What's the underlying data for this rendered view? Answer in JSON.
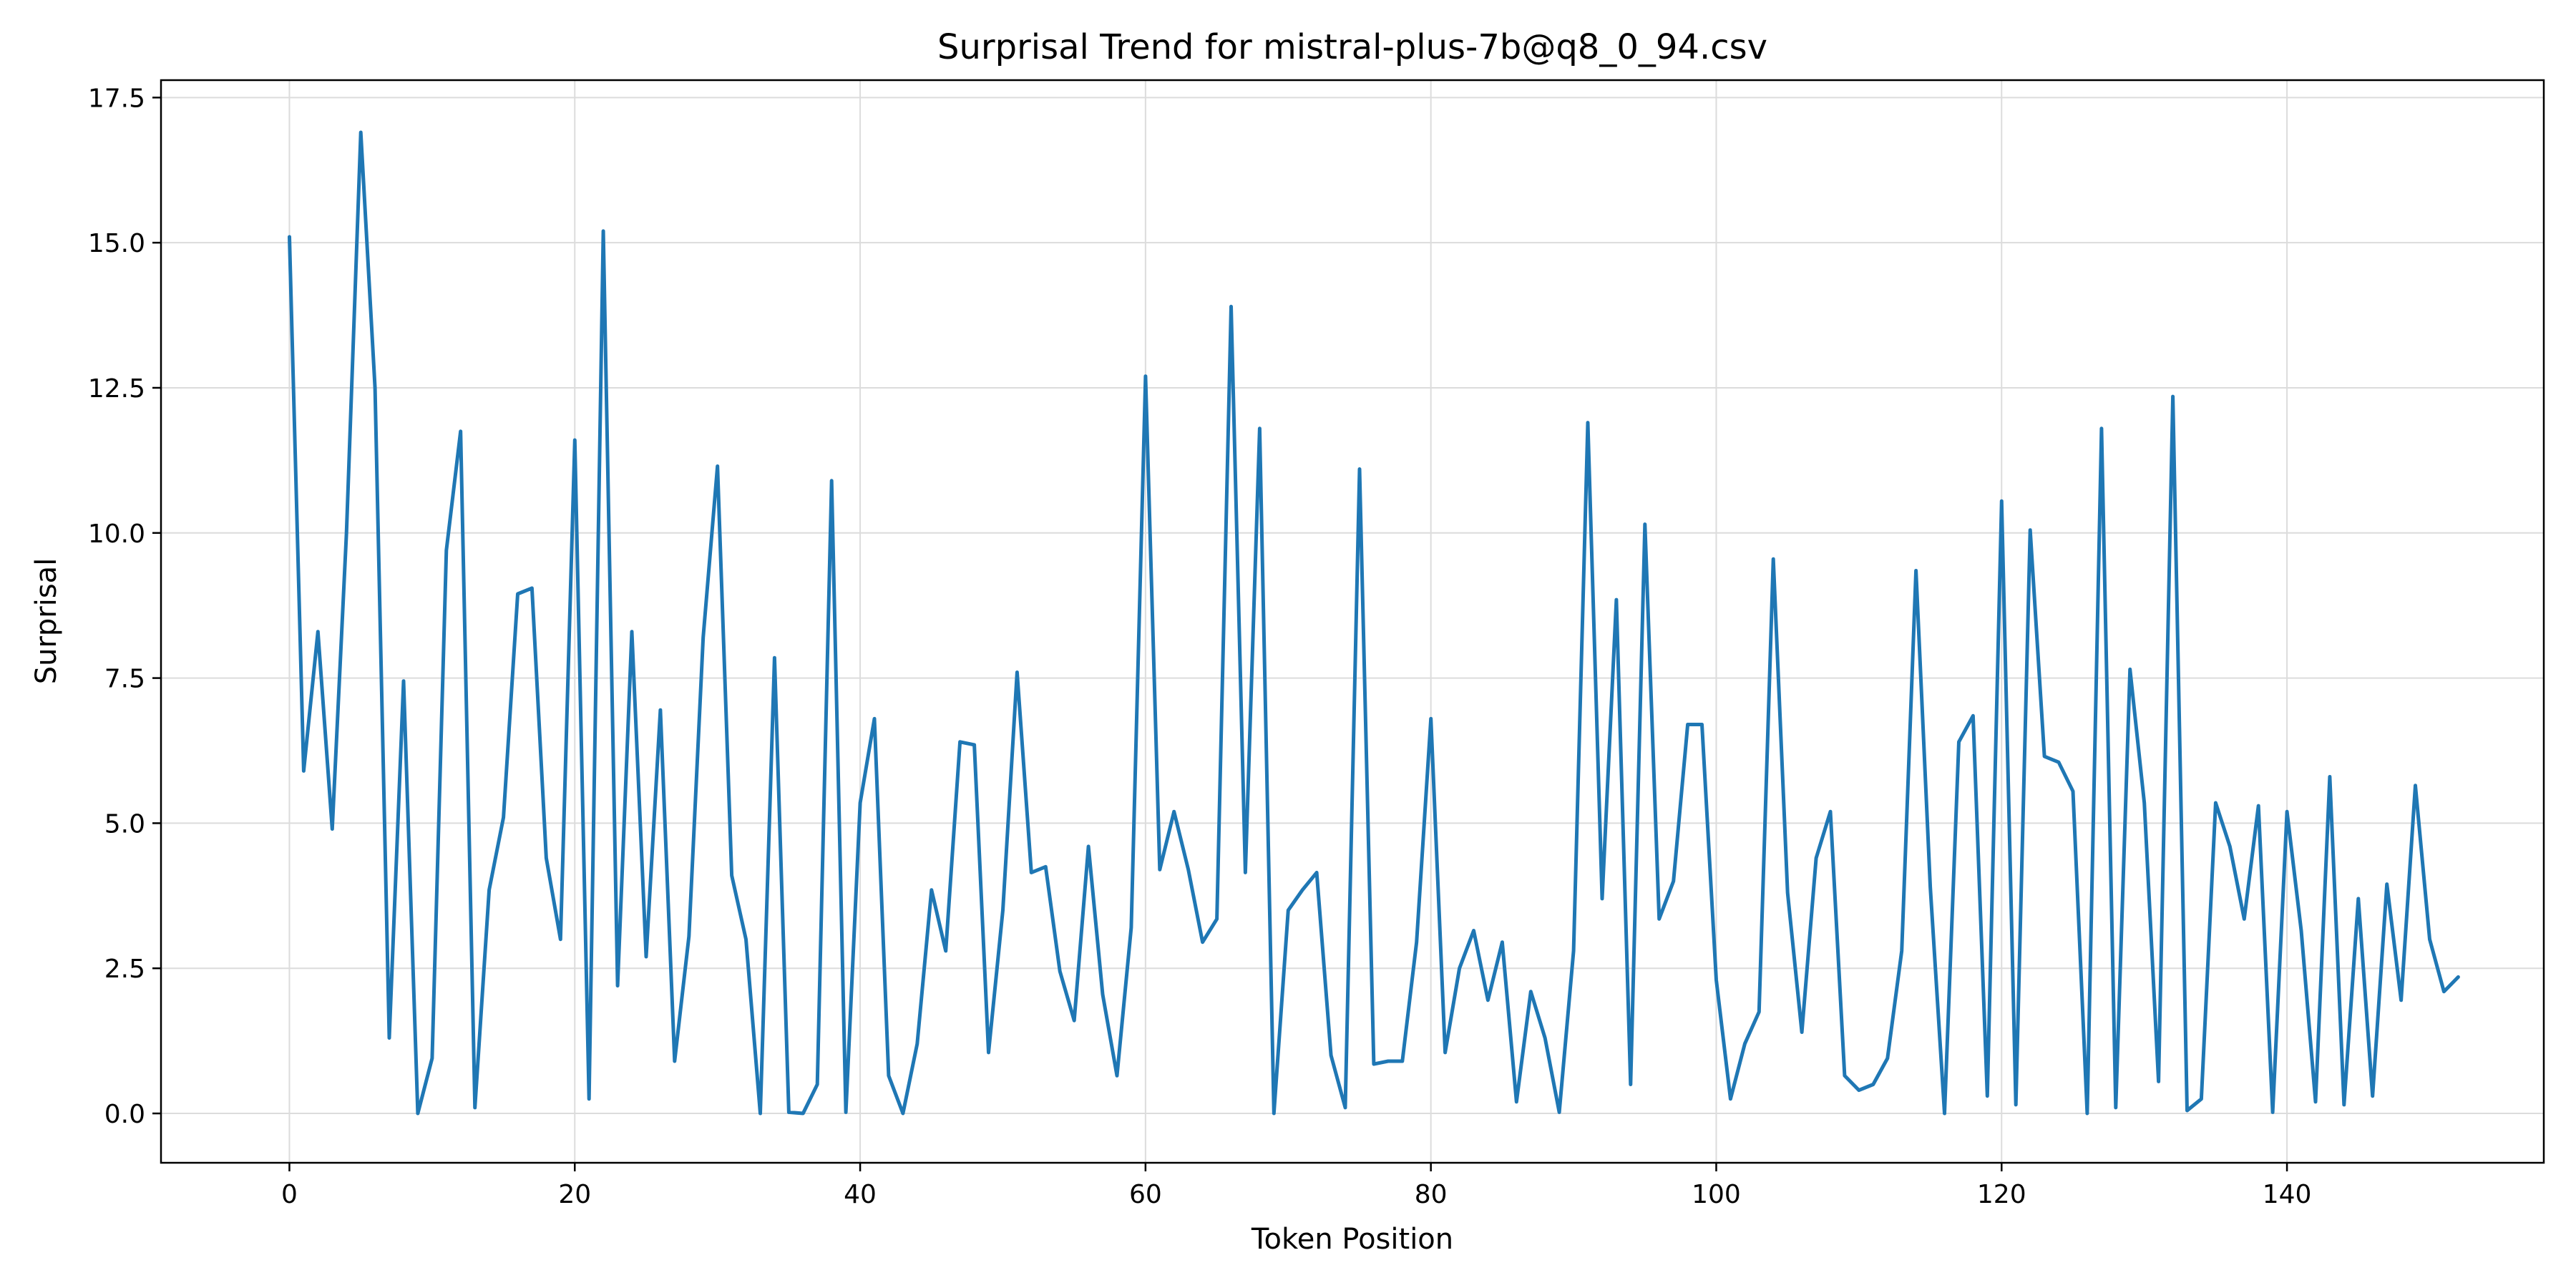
{
  "chart_data": {
    "type": "line",
    "title": "Surprisal Trend for mistral-plus-7b@q8_0_94.csv",
    "xlabel": "Token Position",
    "ylabel": "Surprisal",
    "xlim": [
      -9,
      158
    ],
    "ylim": [
      -0.85,
      17.8
    ],
    "xticks": [
      0,
      20,
      40,
      60,
      80,
      100,
      120,
      140
    ],
    "yticks": [
      0.0,
      2.5,
      5.0,
      7.5,
      10.0,
      12.5,
      15.0,
      17.5
    ],
    "xtick_labels": [
      "0",
      "20",
      "40",
      "60",
      "80",
      "100",
      "120",
      "140"
    ],
    "ytick_labels": [
      "0.0",
      "2.5",
      "5.0",
      "7.5",
      "10.0",
      "12.5",
      "15.0",
      "17.5"
    ],
    "grid": true,
    "line_color": "#1f77b4",
    "series": [
      {
        "x": [
          0,
          1,
          2,
          3,
          4,
          5,
          6,
          7,
          8,
          9,
          10,
          11,
          12,
          13,
          14,
          15,
          16,
          17,
          18,
          19,
          20,
          21,
          22,
          23,
          24,
          25,
          26,
          27,
          28,
          29,
          30,
          31,
          32,
          33,
          34,
          35,
          36,
          37,
          38,
          39,
          40,
          41,
          42,
          43,
          44,
          45,
          46,
          47,
          48,
          49,
          50,
          51,
          52,
          53,
          54,
          55,
          56,
          57,
          58,
          59,
          60,
          61,
          62,
          63,
          64,
          65,
          66,
          67,
          68,
          69,
          70,
          71,
          72,
          73,
          74,
          75,
          76,
          77,
          78,
          79,
          80,
          81,
          82,
          83,
          84,
          85,
          86,
          87,
          88,
          89,
          90,
          91,
          92,
          93,
          94,
          95,
          96,
          97,
          98,
          99,
          100,
          101,
          102,
          103,
          104,
          105,
          106,
          107,
          108,
          109,
          110,
          111,
          112,
          113,
          114,
          115,
          116,
          117,
          118,
          119,
          120,
          121,
          122,
          123,
          124,
          125,
          126,
          127,
          128,
          129,
          130,
          131,
          132,
          133,
          134,
          135,
          136,
          137,
          138,
          139,
          140,
          141,
          142,
          143,
          144,
          145,
          146,
          147,
          148,
          149,
          150,
          151,
          152
        ],
        "values": [
          15.1,
          5.9,
          8.3,
          4.9,
          10.0,
          16.9,
          12.5,
          1.3,
          7.45,
          0.0,
          0.95,
          9.7,
          11.75,
          0.1,
          3.85,
          5.1,
          8.95,
          9.05,
          4.4,
          3.0,
          11.6,
          0.25,
          15.2,
          2.2,
          8.3,
          2.7,
          6.95,
          0.9,
          3.05,
          8.2,
          11.15,
          4.1,
          3.0,
          0.0,
          7.85,
          0.02,
          0.0,
          0.5,
          10.9,
          0.02,
          5.35,
          6.8,
          0.65,
          0.0,
          1.2,
          3.85,
          2.8,
          6.4,
          6.35,
          1.05,
          3.5,
          7.6,
          4.15,
          4.25,
          2.45,
          1.6,
          4.6,
          2.05,
          0.65,
          3.2,
          12.7,
          4.2,
          5.2,
          4.2,
          2.95,
          3.35,
          13.9,
          4.15,
          11.8,
          0.0,
          3.5,
          3.85,
          4.15,
          1.0,
          0.1,
          11.1,
          0.85,
          0.9,
          0.9,
          2.95,
          6.8,
          1.05,
          2.5,
          3.15,
          1.95,
          2.95,
          0.2,
          2.1,
          1.3,
          0.02,
          2.8,
          11.9,
          3.7,
          8.85,
          0.5,
          10.15,
          3.35,
          4.0,
          6.7,
          6.7,
          2.3,
          0.25,
          1.2,
          1.75,
          9.55,
          3.8,
          1.4,
          4.4,
          5.2,
          0.65,
          0.4,
          0.5,
          0.95,
          2.8,
          9.35,
          3.9,
          0.0,
          6.4,
          6.85,
          0.3,
          10.55,
          0.15,
          10.05,
          6.15,
          6.05,
          5.55,
          0.0,
          11.8,
          0.1,
          7.65,
          5.35,
          0.55,
          12.35,
          0.05,
          0.25,
          5.35,
          4.6,
          3.35,
          5.3,
          0.02,
          5.2,
          3.15,
          0.2,
          5.8,
          0.15,
          3.7,
          0.3,
          3.95,
          1.95,
          5.65,
          3.0,
          2.1,
          2.35
        ]
      }
    ]
  }
}
